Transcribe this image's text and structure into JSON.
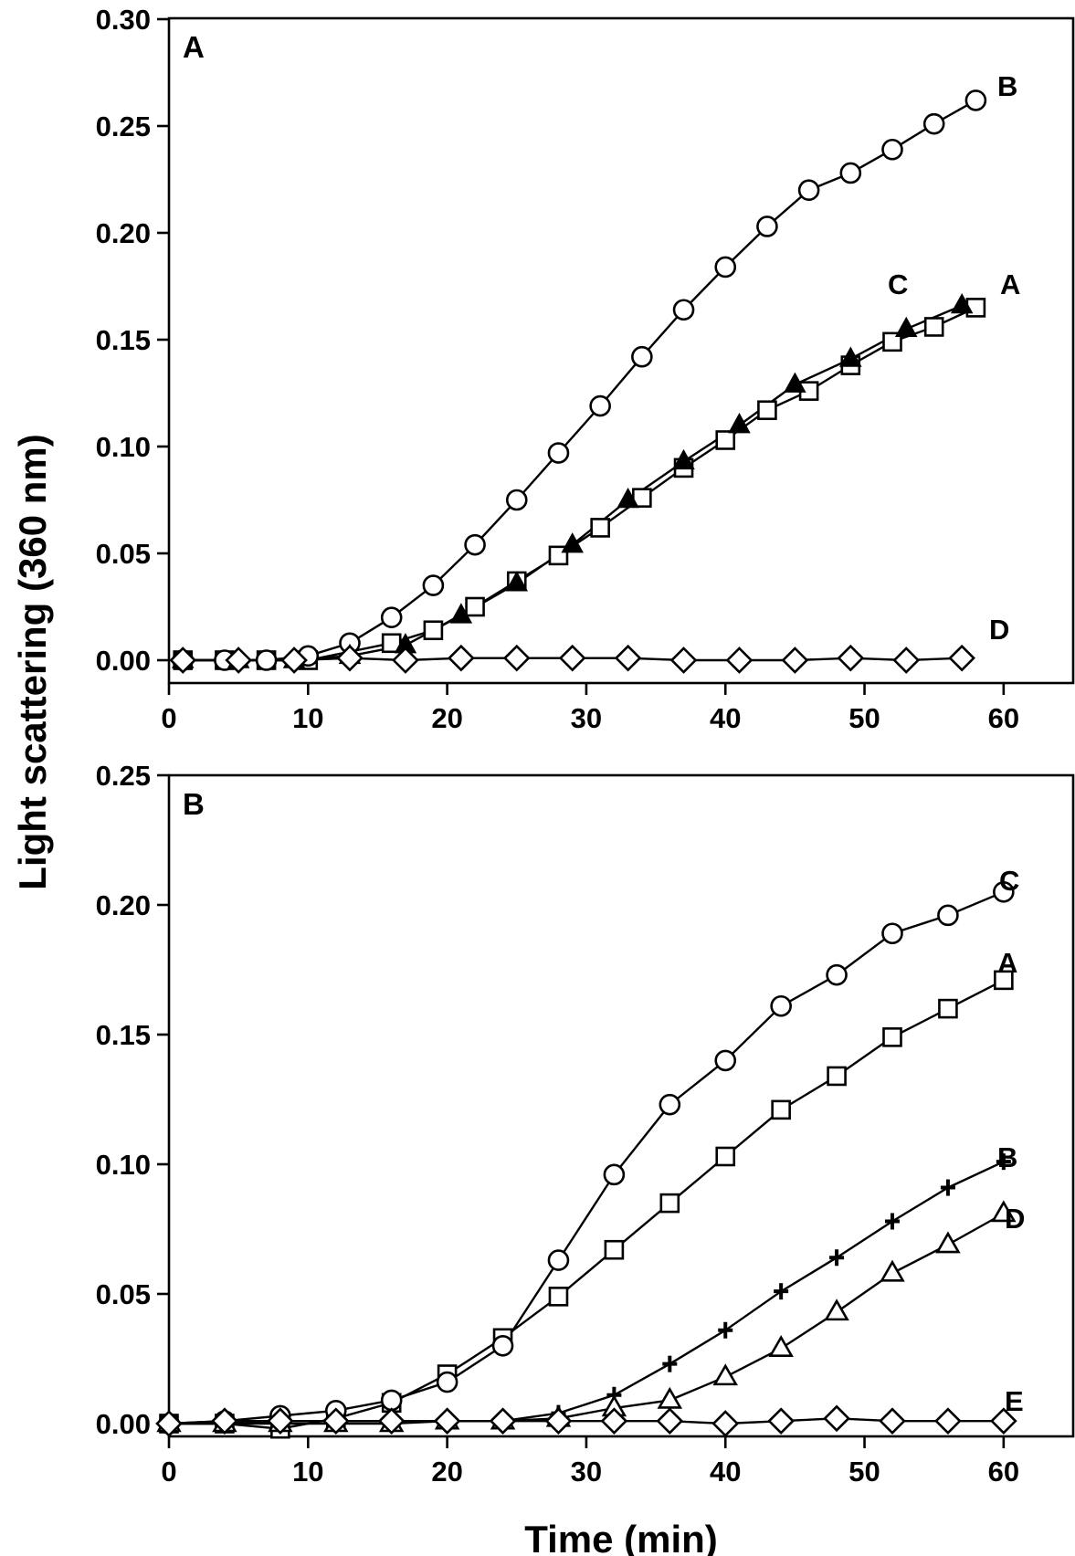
{
  "figure": {
    "ylabel": "Light scattering (360 nm)",
    "xlabel": "Time (min)"
  },
  "chart_data": [
    {
      "type": "line",
      "panel": "A",
      "title": "A",
      "xlabel": "Time (min)",
      "ylabel": "Light scattering (360 nm)",
      "xlim": [
        0,
        65
      ],
      "ylim": [
        -0.011,
        0.3
      ],
      "xticks": [
        0,
        10,
        20,
        30,
        40,
        50,
        60
      ],
      "xtick_labels": [
        "0",
        "10",
        "20",
        "30",
        "40",
        "50",
        "60"
      ],
      "yticks": [
        0.0,
        0.05,
        0.1,
        0.15,
        0.2,
        0.25,
        0.3
      ],
      "ytick_labels": [
        "0.00",
        "0.05",
        "0.10",
        "0.15",
        "0.20",
        "0.25",
        "0.30"
      ],
      "grid": false,
      "series": [
        {
          "name": "A",
          "marker": "open-square",
          "x": [
            1,
            4,
            7,
            10,
            16,
            19,
            22,
            25,
            28,
            31,
            34,
            37,
            40,
            43,
            46,
            49,
            52,
            55,
            58
          ],
          "y": [
            0.0,
            0.0,
            0.0,
            0.0,
            0.008,
            0.014,
            0.025,
            0.037,
            0.049,
            0.062,
            0.076,
            0.09,
            0.103,
            0.117,
            0.126,
            0.138,
            0.149,
            0.156,
            0.165
          ]
        },
        {
          "name": "B",
          "marker": "open-circle",
          "x": [
            1,
            4,
            7,
            10,
            13,
            16,
            19,
            22,
            25,
            28,
            31,
            34,
            37,
            40,
            43,
            46,
            49,
            52,
            55,
            58
          ],
          "y": [
            0.0,
            0.0,
            0.0,
            0.002,
            0.008,
            0.02,
            0.035,
            0.054,
            0.075,
            0.097,
            0.119,
            0.142,
            0.164,
            0.184,
            0.203,
            0.22,
            0.228,
            0.239,
            0.251,
            0.262
          ]
        },
        {
          "name": "C",
          "marker": "filled-triangle",
          "x": [
            1,
            5,
            9,
            13,
            17,
            21,
            25,
            29,
            33,
            37,
            41,
            45,
            49,
            53,
            57
          ],
          "y": [
            0.0,
            0.0,
            0.0,
            0.002,
            0.007,
            0.021,
            0.036,
            0.054,
            0.075,
            0.093,
            0.11,
            0.129,
            0.141,
            0.155,
            0.166
          ]
        },
        {
          "name": "D",
          "marker": "open-diamond",
          "x": [
            1,
            5,
            9,
            13,
            17,
            21,
            25,
            29,
            33,
            37,
            41,
            45,
            49,
            53,
            57
          ],
          "y": [
            0.0,
            0.0,
            0.0,
            0.001,
            0.0,
            0.001,
            0.001,
            0.001,
            0.001,
            0.0,
            0.0,
            0.0,
            0.001,
            0.0,
            0.001
          ]
        }
      ]
    },
    {
      "type": "line",
      "panel": "B",
      "title": "B",
      "xlabel": "Time (min)",
      "ylabel": "Light scattering (360 nm)",
      "xlim": [
        0,
        65
      ],
      "ylim": [
        -0.005,
        0.25
      ],
      "xticks": [
        0,
        10,
        20,
        30,
        40,
        50,
        60
      ],
      "xtick_labels": [
        "0",
        "10",
        "20",
        "30",
        "40",
        "50",
        "60"
      ],
      "yticks": [
        0.0,
        0.05,
        0.1,
        0.15,
        0.2,
        0.25
      ],
      "ytick_labels": [
        "0.00",
        "0.05",
        "0.10",
        "0.15",
        "0.20",
        "0.25"
      ],
      "grid": false,
      "series": [
        {
          "name": "A",
          "marker": "open-square",
          "x": [
            0,
            4,
            8,
            12,
            16,
            20,
            24,
            28,
            32,
            36,
            40,
            44,
            48,
            52,
            56,
            60
          ],
          "y": [
            0.0,
            0.0,
            -0.002,
            0.002,
            0.008,
            0.019,
            0.033,
            0.049,
            0.067,
            0.085,
            0.103,
            0.121,
            0.134,
            0.149,
            0.16,
            0.171
          ]
        },
        {
          "name": "B",
          "marker": "plus",
          "x": [
            0,
            4,
            8,
            12,
            16,
            20,
            24,
            28,
            32,
            36,
            40,
            44,
            48,
            52,
            56,
            60
          ],
          "y": [
            0.0,
            0.0,
            0.001,
            0.001,
            0.001,
            0.001,
            0.001,
            0.004,
            0.011,
            0.023,
            0.036,
            0.051,
            0.064,
            0.078,
            0.091,
            0.101
          ]
        },
        {
          "name": "C",
          "marker": "open-circle",
          "x": [
            0,
            4,
            8,
            12,
            16,
            20,
            24,
            28,
            32,
            36,
            40,
            44,
            48,
            52,
            56,
            60
          ],
          "y": [
            0.0,
            0.001,
            0.003,
            0.005,
            0.009,
            0.016,
            0.03,
            0.063,
            0.096,
            0.123,
            0.14,
            0.161,
            0.173,
            0.189,
            0.196,
            0.205
          ]
        },
        {
          "name": "D",
          "marker": "open-triangle",
          "x": [
            0,
            4,
            8,
            12,
            16,
            20,
            24,
            28,
            32,
            36,
            40,
            44,
            48,
            52,
            56,
            60
          ],
          "y": [
            0.0,
            0.0,
            0.0,
            0.0,
            0.0,
            0.001,
            0.001,
            0.002,
            0.006,
            0.009,
            0.018,
            0.029,
            0.043,
            0.058,
            0.069,
            0.081
          ]
        },
        {
          "name": "E",
          "marker": "open-diamond",
          "x": [
            0,
            4,
            8,
            12,
            16,
            20,
            24,
            28,
            32,
            36,
            40,
            44,
            48,
            52,
            56,
            60
          ],
          "y": [
            0.0,
            0.001,
            0.001,
            0.001,
            0.001,
            0.001,
            0.001,
            0.001,
            0.001,
            0.001,
            0.0,
            0.001,
            0.002,
            0.001,
            0.001,
            0.001
          ]
        }
      ]
    }
  ]
}
